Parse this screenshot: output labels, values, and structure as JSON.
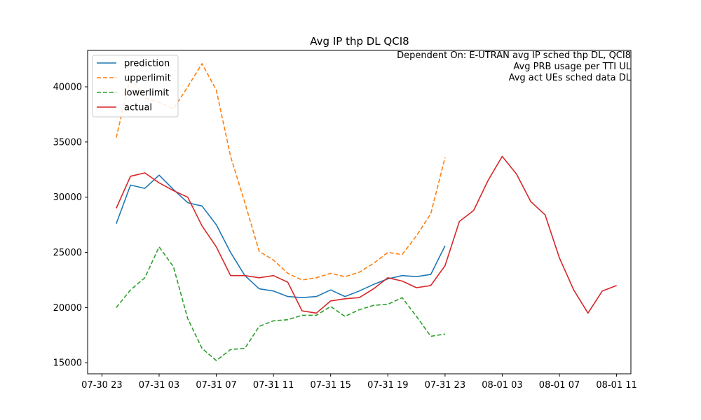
{
  "chart_data": {
    "type": "line",
    "title": "Avg IP thp DL QCI8",
    "annotation_lines": [
      "Dependent On: E-UTRAN avg IP sched thp DL, QCI8",
      "Avg PRB usage per TTI UL",
      "Avg act UEs sched data DL"
    ],
    "annotation_placement": "top-right",
    "legend_placement": "top-left",
    "grid": false,
    "xlim": [
      "2019-07-30T22:00",
      "2019-08-01T12:00"
    ],
    "ylim": [
      14000,
      43300
    ],
    "xticks": [
      {
        "t": "2019-07-30T23:00",
        "label": "07-30 23"
      },
      {
        "t": "2019-07-31T03:00",
        "label": "07-31 03"
      },
      {
        "t": "2019-07-31T07:00",
        "label": "07-31 07"
      },
      {
        "t": "2019-07-31T11:00",
        "label": "07-31 11"
      },
      {
        "t": "2019-07-31T15:00",
        "label": "07-31 15"
      },
      {
        "t": "2019-07-31T19:00",
        "label": "07-31 19"
      },
      {
        "t": "2019-07-31T23:00",
        "label": "07-31 23"
      },
      {
        "t": "2019-08-01T03:00",
        "label": "08-01 03"
      },
      {
        "t": "2019-08-01T07:00",
        "label": "08-01 07"
      },
      {
        "t": "2019-08-01T11:00",
        "label": "08-01 11"
      }
    ],
    "yticks": [
      {
        "v": 15000,
        "label": "15000"
      },
      {
        "v": 20000,
        "label": "20000"
      },
      {
        "v": 25000,
        "label": "25000"
      },
      {
        "v": 30000,
        "label": "30000"
      },
      {
        "v": 35000,
        "label": "35000"
      },
      {
        "v": 40000,
        "label": "40000"
      }
    ],
    "series": [
      {
        "name": "prediction",
        "color": "#1f77b4",
        "dash": "solid",
        "x": [
          "2019-07-31T00:00",
          "2019-07-31T01:00",
          "2019-07-31T02:00",
          "2019-07-31T03:00",
          "2019-07-31T04:00",
          "2019-07-31T05:00",
          "2019-07-31T06:00",
          "2019-07-31T07:00",
          "2019-07-31T08:00",
          "2019-07-31T09:00",
          "2019-07-31T10:00",
          "2019-07-31T11:00",
          "2019-07-31T12:00",
          "2019-07-31T13:00",
          "2019-07-31T14:00",
          "2019-07-31T15:00",
          "2019-07-31T16:00",
          "2019-07-31T17:00",
          "2019-07-31T18:00",
          "2019-07-31T19:00",
          "2019-07-31T20:00",
          "2019-07-31T21:00",
          "2019-07-31T22:00",
          "2019-07-31T23:00"
        ],
        "y": [
          27600,
          31100,
          30800,
          32000,
          30700,
          29500,
          29200,
          27500,
          25000,
          22900,
          21700,
          21500,
          21000,
          20900,
          21000,
          21600,
          21000,
          21500,
          22100,
          22600,
          22900,
          22800,
          23000,
          25600
        ]
      },
      {
        "name": "upperlimit",
        "color": "#ff7f0e",
        "dash": "dashed",
        "x": [
          "2019-07-31T00:00",
          "2019-07-31T01:00",
          "2019-07-31T02:00",
          "2019-07-31T03:00",
          "2019-07-31T04:00",
          "2019-07-31T05:00",
          "2019-07-31T06:00",
          "2019-07-31T07:00",
          "2019-07-31T08:00",
          "2019-07-31T09:00",
          "2019-07-31T10:00",
          "2019-07-31T11:00",
          "2019-07-31T12:00",
          "2019-07-31T13:00",
          "2019-07-31T14:00",
          "2019-07-31T15:00",
          "2019-07-31T16:00",
          "2019-07-31T17:00",
          "2019-07-31T18:00",
          "2019-07-31T19:00",
          "2019-07-31T20:00",
          "2019-07-31T21:00",
          "2019-07-31T22:00",
          "2019-07-31T23:00"
        ],
        "y": [
          35400,
          40900,
          39000,
          38600,
          38000,
          40000,
          42100,
          39700,
          33700,
          29500,
          25100,
          24300,
          23100,
          22500,
          22700,
          23100,
          22800,
          23200,
          24000,
          25000,
          24800,
          26500,
          28500,
          33600
        ]
      },
      {
        "name": "lowerlimit",
        "color": "#2ca02c",
        "dash": "dashed",
        "x": [
          "2019-07-31T00:00",
          "2019-07-31T01:00",
          "2019-07-31T02:00",
          "2019-07-31T03:00",
          "2019-07-31T04:00",
          "2019-07-31T05:00",
          "2019-07-31T06:00",
          "2019-07-31T07:00",
          "2019-07-31T08:00",
          "2019-07-31T09:00",
          "2019-07-31T10:00",
          "2019-07-31T11:00",
          "2019-07-31T12:00",
          "2019-07-31T13:00",
          "2019-07-31T14:00",
          "2019-07-31T15:00",
          "2019-07-31T16:00",
          "2019-07-31T17:00",
          "2019-07-31T18:00",
          "2019-07-31T19:00",
          "2019-07-31T20:00",
          "2019-07-31T21:00",
          "2019-07-31T22:00",
          "2019-07-31T23:00"
        ],
        "y": [
          20000,
          21600,
          22700,
          25500,
          23700,
          19000,
          16300,
          15200,
          16200,
          16300,
          18300,
          18800,
          18900,
          19300,
          19300,
          20100,
          19200,
          19800,
          20200,
          20300,
          20900,
          19200,
          17400,
          17600
        ]
      },
      {
        "name": "actual",
        "color": "#d62728",
        "dash": "solid",
        "x": [
          "2019-07-31T00:00",
          "2019-07-31T01:00",
          "2019-07-31T02:00",
          "2019-07-31T03:00",
          "2019-07-31T04:00",
          "2019-07-31T05:00",
          "2019-07-31T06:00",
          "2019-07-31T07:00",
          "2019-07-31T08:00",
          "2019-07-31T09:00",
          "2019-07-31T10:00",
          "2019-07-31T11:00",
          "2019-07-31T12:00",
          "2019-07-31T13:00",
          "2019-07-31T14:00",
          "2019-07-31T15:00",
          "2019-07-31T16:00",
          "2019-07-31T17:00",
          "2019-07-31T18:00",
          "2019-07-31T19:00",
          "2019-07-31T20:00",
          "2019-07-31T21:00",
          "2019-07-31T22:00",
          "2019-07-31T23:00",
          "2019-08-01T00:00",
          "2019-08-01T01:00",
          "2019-08-01T02:00",
          "2019-08-01T03:00",
          "2019-08-01T04:00",
          "2019-08-01T05:00",
          "2019-08-01T06:00",
          "2019-08-01T07:00",
          "2019-08-01T08:00",
          "2019-08-01T09:00",
          "2019-08-01T10:00",
          "2019-08-01T11:00"
        ],
        "y": [
          29000,
          31900,
          32200,
          31300,
          30600,
          30000,
          27400,
          25500,
          22900,
          22900,
          22700,
          22900,
          22300,
          19700,
          19500,
          20600,
          20800,
          20900,
          21700,
          22700,
          22400,
          21800,
          22000,
          23800,
          27800,
          28800,
          31500,
          33700,
          32100,
          29600,
          28400,
          24500,
          21600,
          19500,
          21500,
          22000
        ]
      }
    ]
  }
}
